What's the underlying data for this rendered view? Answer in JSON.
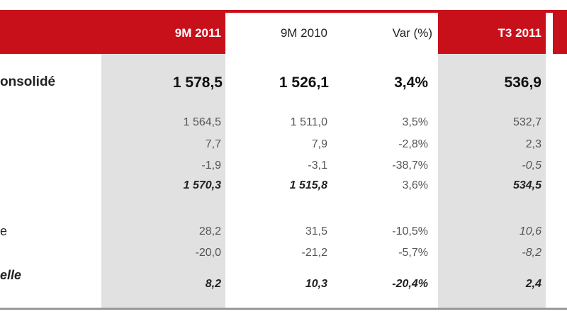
{
  "header": {
    "col1": "9M 2011",
    "col2": "9M 2010",
    "col3": "Var (%)",
    "col4": "T3 2011"
  },
  "row_labels": {
    "consolidated": "onsolidé",
    "r6": "e",
    "r8": "elle"
  },
  "rows": [
    {
      "c1": "1 578,5",
      "c2": "1 526,1",
      "c3": "3,4%",
      "c4": "536,9"
    },
    {
      "c1": "1 564,5",
      "c2": "1 511,0",
      "c3": "3,5%",
      "c4": "532,7"
    },
    {
      "c1": "7,7",
      "c2": "7,9",
      "c3": "-2,8%",
      "c4": "2,3"
    },
    {
      "c1": "-1,9",
      "c2": "-3,1",
      "c3": "-38,7%",
      "c4": "-0,5"
    },
    {
      "c1": "1 570,3",
      "c2": "1 515,8",
      "c3": "3,6%",
      "c4": "534,5"
    },
    {
      "c1": "28,2",
      "c2": "31,5",
      "c3": "-10,5%",
      "c4": "10,6"
    },
    {
      "c1": "-20,0",
      "c2": "-21,2",
      "c3": "-5,7%",
      "c4": "-8,2"
    },
    {
      "c1": "8,2",
      "c2": "10,3",
      "c3": "-20,4%",
      "c4": "2,4"
    }
  ],
  "colors": {
    "header_red": "#c8101a",
    "shade_gray": "#e1e1e1",
    "rule_gray": "#9a9a9a"
  }
}
